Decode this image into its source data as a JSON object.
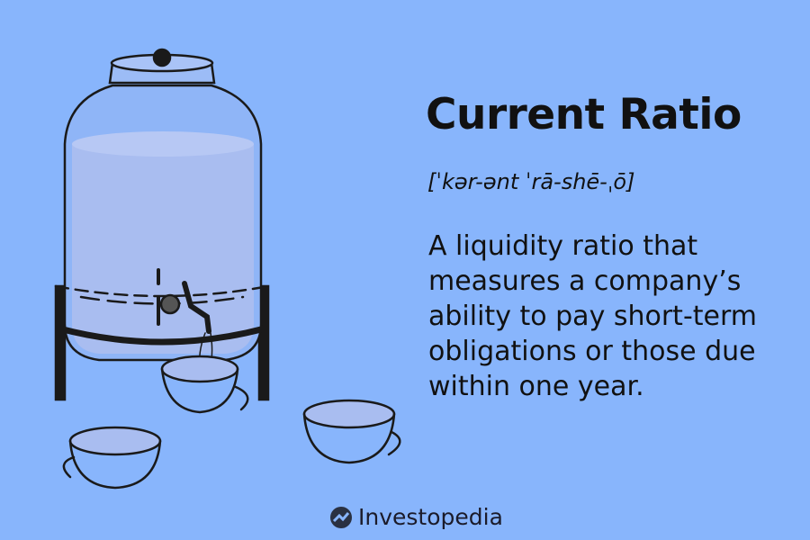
{
  "term": {
    "title": "Current Ratio",
    "pronunciation": "[ˈkər-ənt ˈrā-shē-ˌō]",
    "definition": "A liquidity ratio that measures a company’s ability to pay short-term obligations or those due within one year."
  },
  "brand": {
    "name": "Investopedia",
    "icon": "investopedia-logo-icon"
  },
  "colors": {
    "background": "#88b5fc",
    "water": "#a9bdf0",
    "ink": "#1a1a1a"
  }
}
